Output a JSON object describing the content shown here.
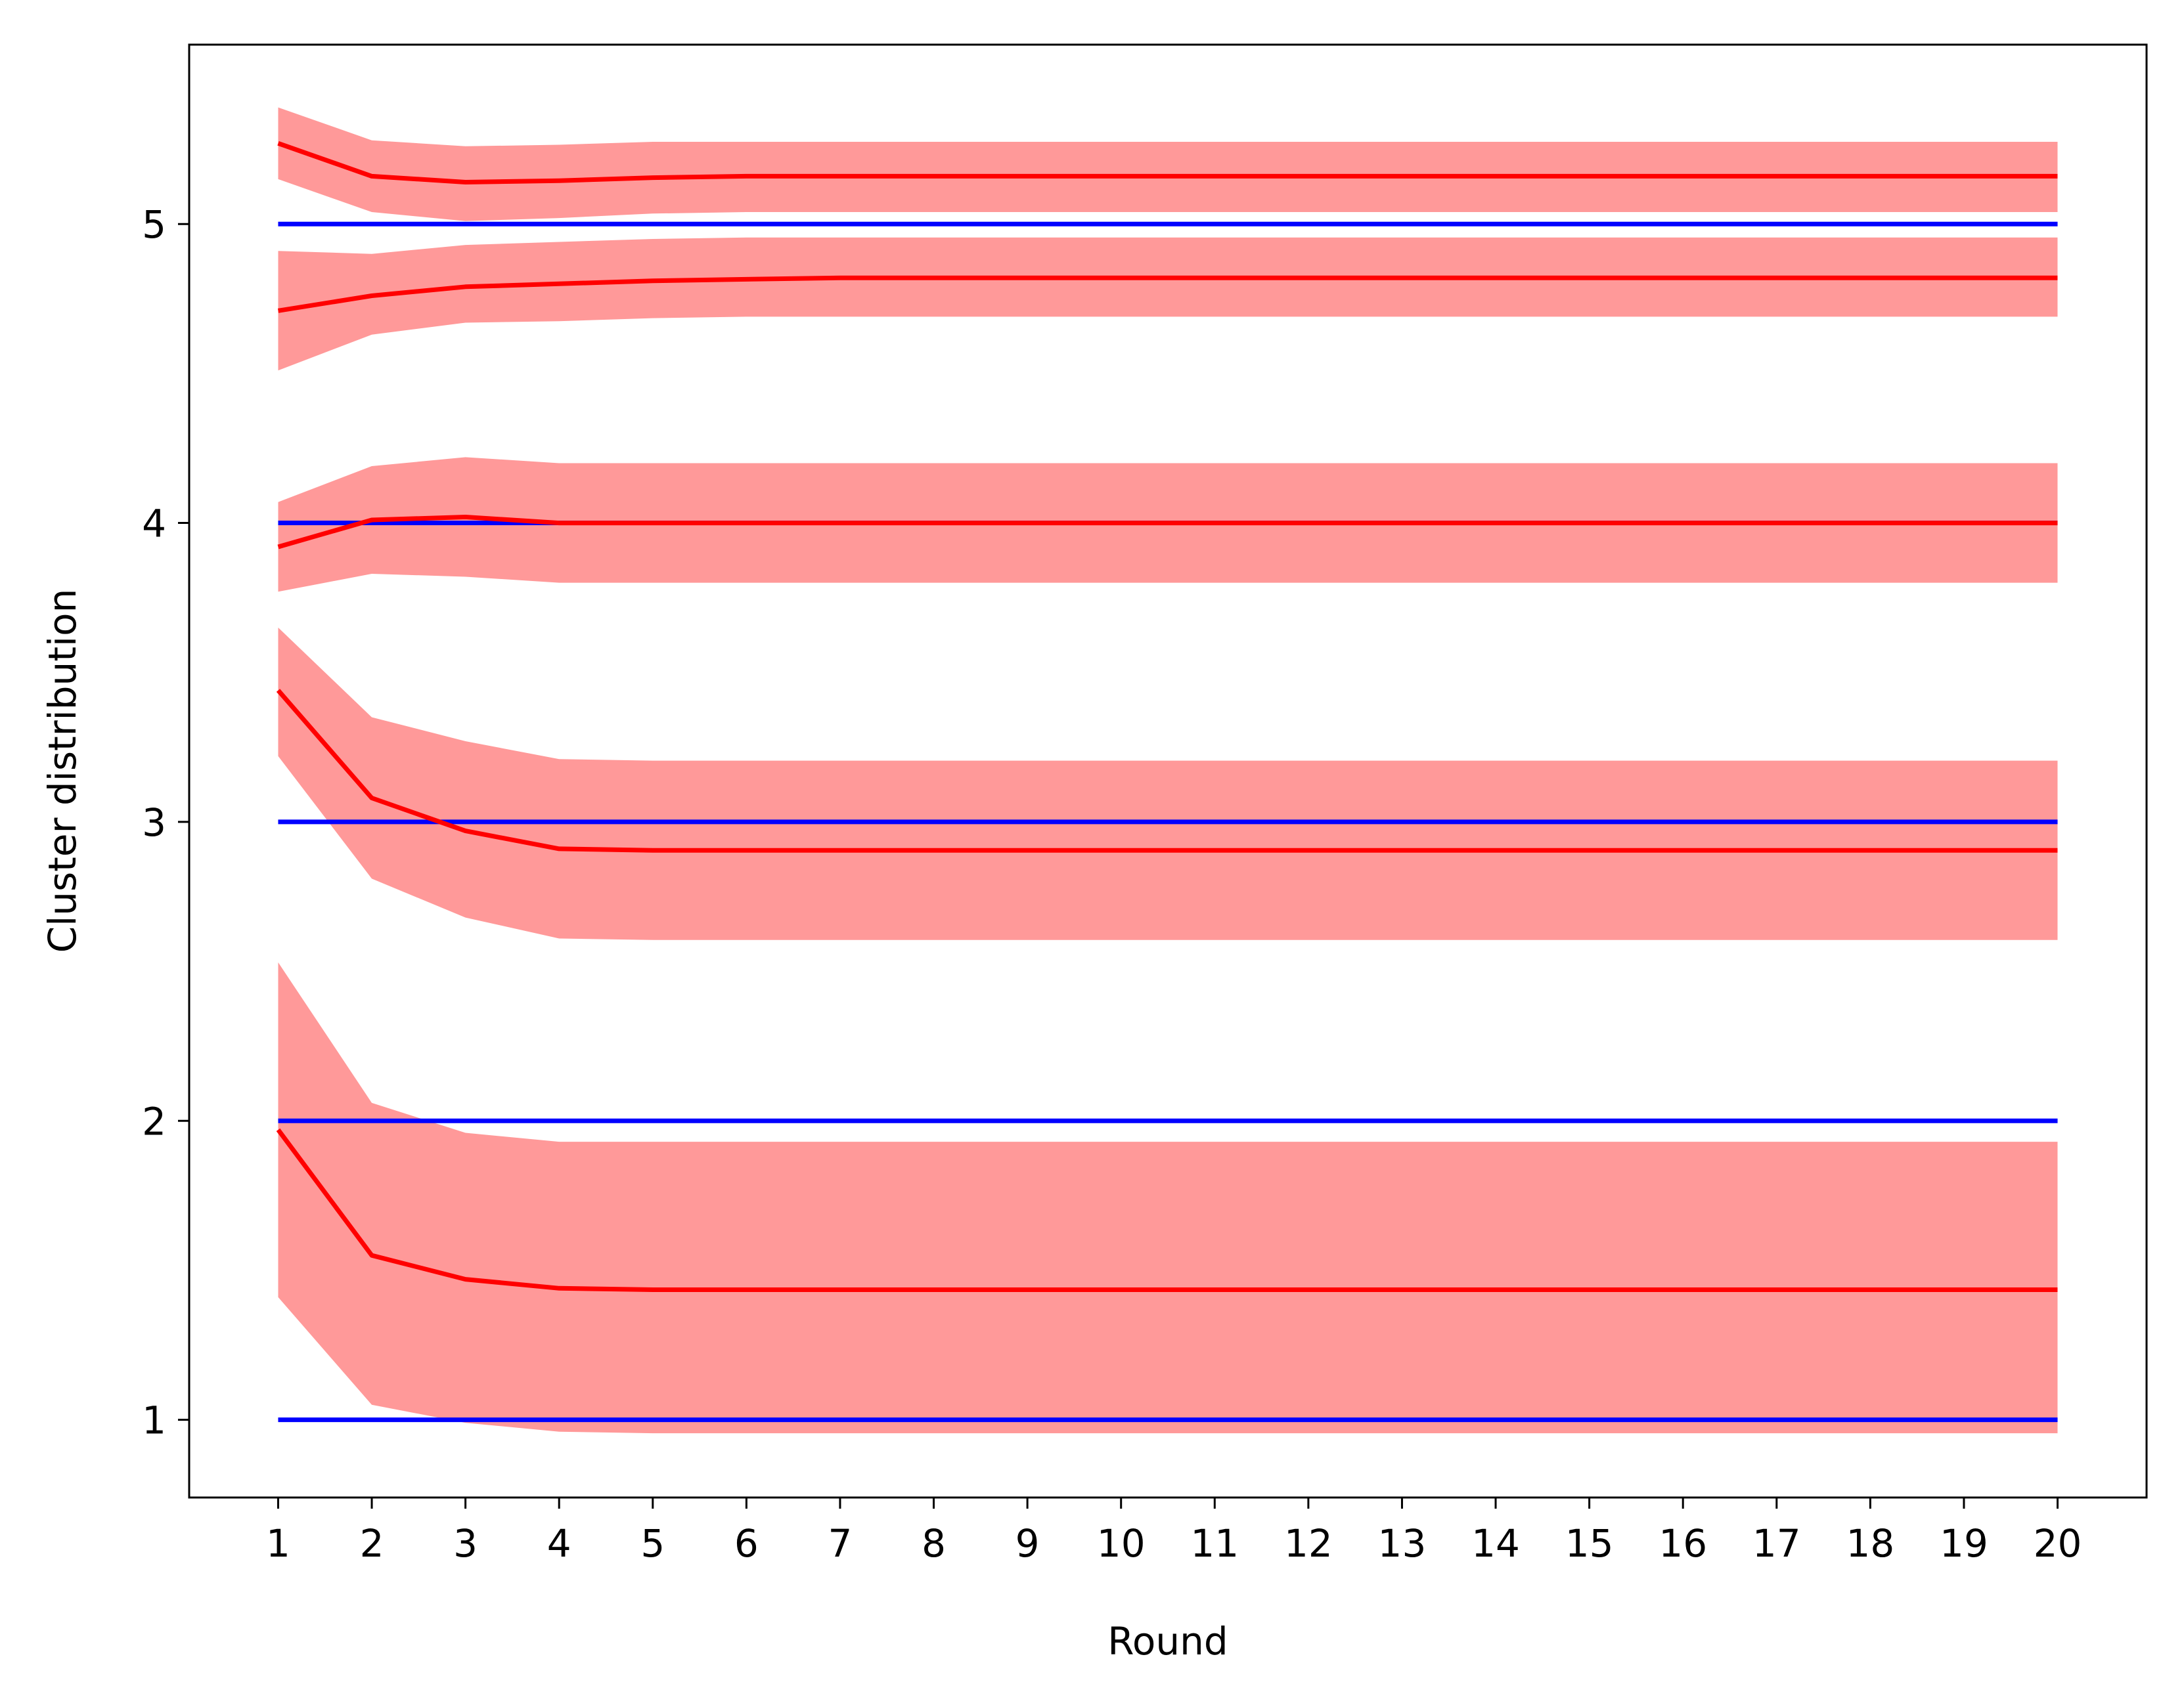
{
  "chart_data": {
    "type": "line",
    "title": "",
    "xlabel": "Round",
    "ylabel": "Cluster distribution",
    "x": [
      1,
      2,
      3,
      4,
      5,
      6,
      7,
      8,
      9,
      10,
      11,
      12,
      13,
      14,
      15,
      16,
      17,
      18,
      19,
      20
    ],
    "xticks": [
      1,
      2,
      3,
      4,
      5,
      6,
      7,
      8,
      9,
      10,
      11,
      12,
      13,
      14,
      15,
      16,
      17,
      18,
      19,
      20
    ],
    "yticks": [
      1,
      2,
      3,
      4,
      5
    ],
    "xlim": [
      0.05,
      20.95
    ],
    "ylim": [
      0.74,
      5.6
    ],
    "grid": false,
    "legend": "none",
    "colors": {
      "estimate": "#ff0000",
      "band": "#ff9999",
      "reference": "#0000ff",
      "axes": "#000000"
    },
    "reference_lines": [
      1,
      2,
      3,
      4,
      5
    ],
    "series": [
      {
        "mean": [
          1.97,
          1.55,
          1.47,
          1.44,
          1.435,
          1.435,
          1.435,
          1.435,
          1.435,
          1.435,
          1.435,
          1.435,
          1.435,
          1.435,
          1.435,
          1.435,
          1.435,
          1.435,
          1.435,
          1.435
        ],
        "lower": [
          1.41,
          1.05,
          0.99,
          0.96,
          0.955,
          0.955,
          0.955,
          0.955,
          0.955,
          0.955,
          0.955,
          0.955,
          0.955,
          0.955,
          0.955,
          0.955,
          0.955,
          0.955,
          0.955,
          0.955
        ],
        "upper": [
          2.53,
          2.06,
          1.96,
          1.93,
          1.93,
          1.93,
          1.93,
          1.93,
          1.93,
          1.93,
          1.93,
          1.93,
          1.93,
          1.93,
          1.93,
          1.93,
          1.93,
          1.93,
          1.93,
          1.93
        ]
      },
      {
        "mean": [
          3.44,
          3.08,
          2.97,
          2.91,
          2.905,
          2.905,
          2.905,
          2.905,
          2.905,
          2.905,
          2.905,
          2.905,
          2.905,
          2.905,
          2.905,
          2.905,
          2.905,
          2.905,
          2.905,
          2.905
        ],
        "lower": [
          3.22,
          2.81,
          2.68,
          2.61,
          2.605,
          2.605,
          2.605,
          2.605,
          2.605,
          2.605,
          2.605,
          2.605,
          2.605,
          2.605,
          2.605,
          2.605,
          2.605,
          2.605,
          2.605,
          2.605
        ],
        "upper": [
          3.65,
          3.35,
          3.27,
          3.21,
          3.205,
          3.205,
          3.205,
          3.205,
          3.205,
          3.205,
          3.205,
          3.205,
          3.205,
          3.205,
          3.205,
          3.205,
          3.205,
          3.205,
          3.205,
          3.205
        ]
      },
      {
        "mean": [
          3.92,
          4.01,
          4.02,
          4.0,
          4.0,
          4.0,
          4.0,
          4.0,
          4.0,
          4.0,
          4.0,
          4.0,
          4.0,
          4.0,
          4.0,
          4.0,
          4.0,
          4.0,
          4.0,
          4.0
        ],
        "lower": [
          3.77,
          3.83,
          3.82,
          3.8,
          3.8,
          3.8,
          3.8,
          3.8,
          3.8,
          3.8,
          3.8,
          3.8,
          3.8,
          3.8,
          3.8,
          3.8,
          3.8,
          3.8,
          3.8,
          3.8
        ],
        "upper": [
          4.07,
          4.19,
          4.22,
          4.2,
          4.2,
          4.2,
          4.2,
          4.2,
          4.2,
          4.2,
          4.2,
          4.2,
          4.2,
          4.2,
          4.2,
          4.2,
          4.2,
          4.2,
          4.2,
          4.2
        ]
      },
      {
        "mean": [
          4.71,
          4.76,
          4.79,
          4.8,
          4.81,
          4.815,
          4.82,
          4.82,
          4.82,
          4.82,
          4.82,
          4.82,
          4.82,
          4.82,
          4.82,
          4.82,
          4.82,
          4.82,
          4.82,
          4.82
        ],
        "lower": [
          4.51,
          4.63,
          4.67,
          4.675,
          4.685,
          4.69,
          4.69,
          4.69,
          4.69,
          4.69,
          4.69,
          4.69,
          4.69,
          4.69,
          4.69,
          4.69,
          4.69,
          4.69,
          4.69,
          4.69
        ],
        "upper": [
          4.91,
          4.9,
          4.93,
          4.94,
          4.95,
          4.955,
          4.955,
          4.955,
          4.955,
          4.955,
          4.955,
          4.955,
          4.955,
          4.955,
          4.955,
          4.955,
          4.955,
          4.955,
          4.955,
          4.955
        ]
      },
      {
        "mean": [
          5.27,
          5.16,
          5.14,
          5.145,
          5.155,
          5.16,
          5.16,
          5.16,
          5.16,
          5.16,
          5.16,
          5.16,
          5.16,
          5.16,
          5.16,
          5.16,
          5.16,
          5.16,
          5.16,
          5.16
        ],
        "lower": [
          5.15,
          5.04,
          5.01,
          5.02,
          5.035,
          5.04,
          5.04,
          5.04,
          5.04,
          5.04,
          5.04,
          5.04,
          5.04,
          5.04,
          5.04,
          5.04,
          5.04,
          5.04,
          5.04,
          5.04
        ],
        "upper": [
          5.39,
          5.28,
          5.26,
          5.265,
          5.275,
          5.275,
          5.275,
          5.275,
          5.275,
          5.275,
          5.275,
          5.275,
          5.275,
          5.275,
          5.275,
          5.275,
          5.275,
          5.275,
          5.275,
          5.275
        ]
      }
    ]
  }
}
